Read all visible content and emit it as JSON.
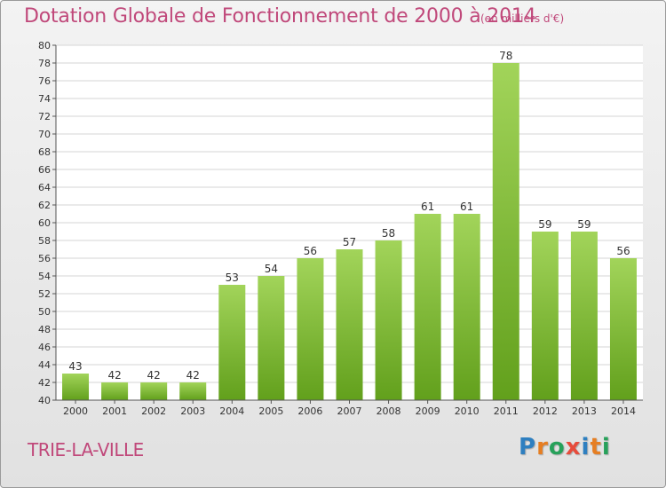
{
  "title": "Dotation Globale de Fonctionnement de 2000 à 2014",
  "unit_note": "(en milliers d'€)",
  "city": "TRIE-LA-VILLE",
  "logo": {
    "text": "Proxiti",
    "letters": [
      "P",
      "r",
      "o",
      "x",
      "i",
      "t",
      "i"
    ],
    "colors": [
      "#2e7fc0",
      "#e67e22",
      "#27a15a",
      "#e74c3c",
      "#2e7fc0",
      "#e67e22",
      "#27a15a"
    ]
  },
  "colors": {
    "bar_light": "#a2d45a",
    "bar_dark": "#62a01c",
    "accent": "#c0487a"
  },
  "chart_data": {
    "type": "bar",
    "title": "Dotation Globale de Fonctionnement de 2000 à 2014",
    "xlabel": "",
    "ylabel": "",
    "categories": [
      "2000",
      "2001",
      "2002",
      "2003",
      "2004",
      "2005",
      "2006",
      "2007",
      "2008",
      "2009",
      "2010",
      "2011",
      "2012",
      "2013",
      "2014"
    ],
    "values": [
      43,
      42,
      42,
      42,
      53,
      54,
      56,
      57,
      58,
      61,
      61,
      78,
      59,
      59,
      56
    ],
    "ylim": [
      40,
      80
    ],
    "yticks": [
      40,
      42,
      44,
      46,
      48,
      50,
      52,
      54,
      56,
      58,
      60,
      62,
      64,
      66,
      68,
      70,
      72,
      74,
      76,
      78,
      80
    ],
    "grid": true,
    "legend": "none"
  }
}
